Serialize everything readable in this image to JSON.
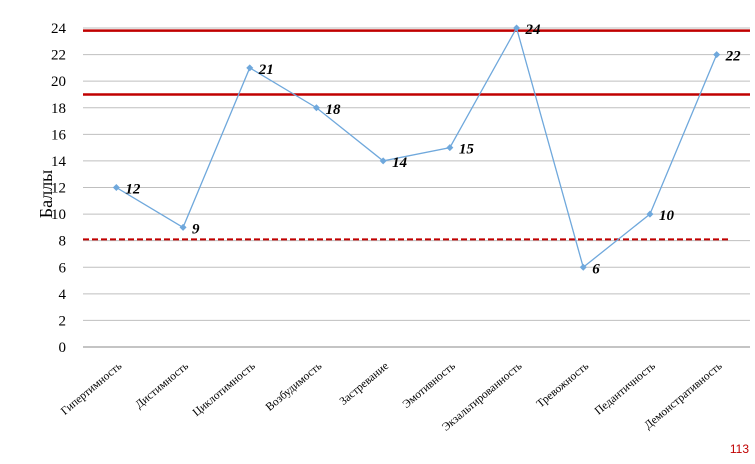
{
  "chart_data": {
    "type": "line",
    "categories": [
      "Гипертимность",
      "Дистимность",
      "Циклотимность",
      "Возбудимость",
      "Застревание",
      "Эмотивность",
      "Экзальтированность",
      "Тревожность",
      "Педантичность",
      "Демонстративность"
    ],
    "series": [
      {
        "values": [
          12,
          9,
          21,
          18,
          14,
          15,
          24,
          6,
          10,
          22
        ],
        "color": "#6fa8dc",
        "marker": "diamond"
      }
    ],
    "data_labels": [
      "12",
      "9",
      "21",
      "18",
      "14",
      "15",
      "24",
      "6",
      "10",
      "22"
    ],
    "ylabel": "Баллы",
    "ylim": [
      0,
      24
    ],
    "yticks": [
      "0",
      "2",
      "4",
      "6",
      "8",
      "10",
      "12",
      "14",
      "16",
      "18",
      "20",
      "22",
      "24"
    ],
    "grid": true,
    "reference_lines": [
      {
        "value": 23.8,
        "style": "solid",
        "color": "#c00000"
      },
      {
        "value": 19,
        "style": "solid",
        "color": "#c00000"
      },
      {
        "value": 8.1,
        "style": "dashed",
        "color": "#c00000"
      }
    ]
  },
  "page_number": "113"
}
